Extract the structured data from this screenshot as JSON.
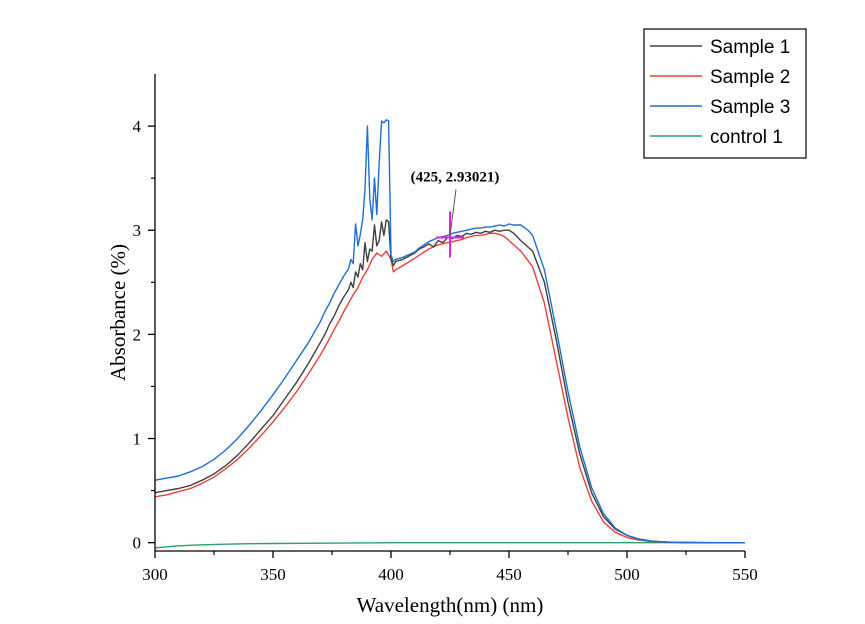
{
  "chart_data": {
    "type": "line",
    "xlabel": "Wavelength(nm) (nm)",
    "ylabel": "Absorbance (%)",
    "xlim": [
      300,
      550
    ],
    "ylim": [
      -0.08,
      4.5
    ],
    "xticks": [
      "300",
      "350",
      "400",
      "450",
      "500",
      "550"
    ],
    "yticks": [
      "0",
      "1",
      "2",
      "3",
      "4"
    ],
    "grid": false,
    "legend_position": "top-right",
    "series": [
      {
        "name": "Sample 1",
        "color": "#404040",
        "x": [
          300,
          305,
          310,
          315,
          320,
          325,
          330,
          335,
          340,
          345,
          350,
          355,
          360,
          365,
          370,
          372,
          374,
          376,
          378,
          380,
          382,
          383,
          384,
          385,
          386,
          387,
          388,
          389,
          390,
          391,
          392,
          393,
          394,
          395,
          396,
          397,
          398,
          399,
          400,
          401,
          402,
          405,
          410,
          412,
          414,
          416,
          418,
          420,
          422,
          424,
          425,
          426,
          428,
          430,
          432,
          434,
          436,
          438,
          440,
          442,
          444,
          446,
          448,
          450,
          452,
          455,
          460,
          465,
          470,
          475,
          480,
          485,
          490,
          495,
          500,
          505,
          510,
          515,
          520,
          525,
          530,
          540,
          550
        ],
        "y": [
          0.48,
          0.5,
          0.52,
          0.55,
          0.6,
          0.66,
          0.74,
          0.84,
          0.96,
          1.09,
          1.22,
          1.38,
          1.54,
          1.72,
          1.92,
          2.0,
          2.1,
          2.18,
          2.28,
          2.36,
          2.43,
          2.5,
          2.45,
          2.6,
          2.55,
          2.68,
          2.62,
          2.88,
          2.7,
          2.82,
          2.8,
          3.05,
          2.85,
          2.9,
          3.08,
          2.95,
          3.1,
          3.08,
          2.72,
          2.66,
          2.7,
          2.72,
          2.78,
          2.82,
          2.84,
          2.87,
          2.84,
          2.9,
          2.88,
          2.93,
          2.93,
          2.92,
          2.95,
          2.94,
          2.97,
          2.96,
          2.98,
          2.97,
          2.99,
          2.98,
          3.0,
          2.99,
          3.0,
          3.0,
          2.97,
          2.9,
          2.8,
          2.5,
          1.95,
          1.35,
          0.85,
          0.48,
          0.25,
          0.13,
          0.07,
          0.035,
          0.015,
          0.008,
          0.004,
          0.002,
          0.001,
          0.0,
          0.0
        ]
      },
      {
        "name": "Sample 2",
        "color": "#e8403a",
        "x": [
          300,
          305,
          310,
          315,
          320,
          325,
          330,
          335,
          340,
          345,
          350,
          355,
          360,
          365,
          370,
          372,
          374,
          376,
          378,
          380,
          382,
          384,
          386,
          388,
          390,
          392,
          394,
          396,
          398,
          400,
          401,
          402,
          405,
          410,
          412,
          414,
          416,
          418,
          420,
          422,
          424,
          426,
          428,
          430,
          432,
          434,
          436,
          438,
          440,
          442,
          444,
          446,
          448,
          450,
          455,
          460,
          465,
          470,
          475,
          480,
          485,
          490,
          495,
          500,
          505,
          510,
          515,
          520,
          525,
          530,
          540,
          550
        ],
        "y": [
          0.44,
          0.46,
          0.49,
          0.52,
          0.57,
          0.63,
          0.71,
          0.8,
          0.91,
          1.03,
          1.16,
          1.3,
          1.45,
          1.62,
          1.8,
          1.88,
          1.96,
          2.05,
          2.13,
          2.22,
          2.3,
          2.38,
          2.45,
          2.55,
          2.62,
          2.72,
          2.78,
          2.75,
          2.8,
          2.72,
          2.6,
          2.62,
          2.66,
          2.73,
          2.76,
          2.79,
          2.82,
          2.84,
          2.86,
          2.87,
          2.88,
          2.89,
          2.9,
          2.91,
          2.93,
          2.94,
          2.95,
          2.95,
          2.96,
          2.97,
          2.97,
          2.96,
          2.94,
          2.9,
          2.8,
          2.65,
          2.3,
          1.75,
          1.2,
          0.72,
          0.4,
          0.2,
          0.1,
          0.05,
          0.025,
          0.012,
          0.006,
          0.003,
          0.001,
          0.0,
          0.0,
          0.0
        ]
      },
      {
        "name": "Sample 3",
        "color": "#1f6fd0",
        "x": [
          300,
          305,
          310,
          315,
          320,
          325,
          330,
          335,
          340,
          345,
          350,
          355,
          360,
          365,
          370,
          372,
          374,
          376,
          378,
          380,
          382,
          383,
          384,
          385,
          386,
          387,
          388,
          389,
          390,
          391,
          392,
          393,
          394,
          395,
          396,
          397,
          398,
          399,
          400,
          401,
          402,
          405,
          410,
          412,
          414,
          416,
          418,
          420,
          422,
          424,
          425,
          426,
          428,
          430,
          432,
          434,
          436,
          438,
          440,
          442,
          444,
          446,
          448,
          450,
          452,
          455,
          458,
          460,
          465,
          470,
          475,
          480,
          485,
          490,
          495,
          500,
          505,
          510,
          515,
          520,
          525,
          530,
          540,
          550
        ],
        "y": [
          0.6,
          0.62,
          0.64,
          0.68,
          0.73,
          0.8,
          0.89,
          1.0,
          1.13,
          1.27,
          1.42,
          1.58,
          1.75,
          1.92,
          2.12,
          2.22,
          2.3,
          2.4,
          2.48,
          2.56,
          2.63,
          2.72,
          2.68,
          3.06,
          2.85,
          2.96,
          3.1,
          3.4,
          4.0,
          3.3,
          3.1,
          3.5,
          3.15,
          3.65,
          4.05,
          4.03,
          4.06,
          4.05,
          2.76,
          2.7,
          2.72,
          2.74,
          2.79,
          2.83,
          2.86,
          2.89,
          2.91,
          2.93,
          2.94,
          2.95,
          2.96,
          2.97,
          2.98,
          2.99,
          3.0,
          3.01,
          3.02,
          3.02,
          3.03,
          3.03,
          3.04,
          3.05,
          3.04,
          3.06,
          3.05,
          3.05,
          3.0,
          2.95,
          2.62,
          2.05,
          1.45,
          0.92,
          0.53,
          0.28,
          0.14,
          0.07,
          0.035,
          0.016,
          0.008,
          0.004,
          0.002,
          0.001,
          0.0,
          0.0
        ]
      },
      {
        "name": "control 1",
        "color": "#2aa36a",
        "x": [
          300,
          305,
          310,
          320,
          330,
          340,
          350,
          370,
          400,
          450,
          500,
          520,
          550
        ],
        "y": [
          -0.05,
          -0.04,
          -0.03,
          -0.02,
          -0.015,
          -0.01,
          -0.008,
          -0.005,
          0.0,
          0.0,
          0.0,
          0.0,
          0.0
        ]
      }
    ],
    "annotation": {
      "x": 425,
      "y": 2.93021,
      "text": "(425, 2.93021)",
      "color": "#e020e0"
    }
  }
}
